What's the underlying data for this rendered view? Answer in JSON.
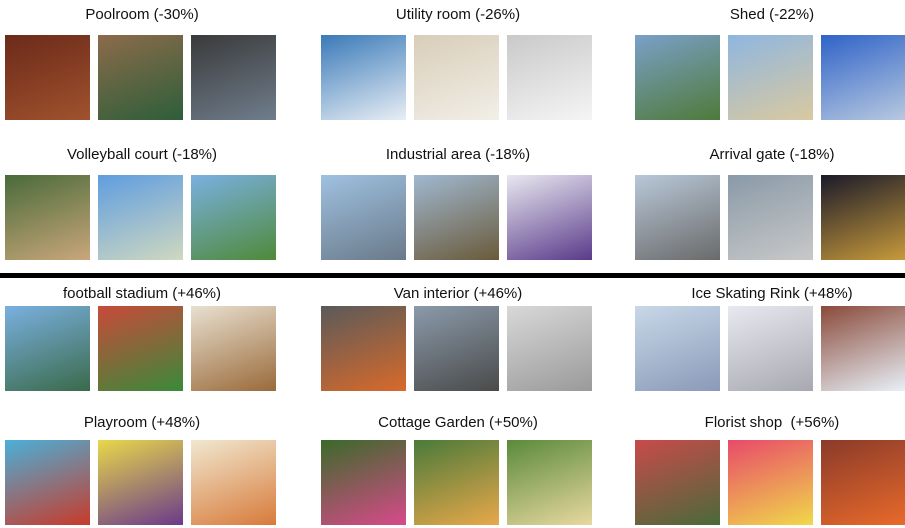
{
  "panels": [
    {
      "label": "Poolroom (-30%)"
    },
    {
      "label": "Utility room (-26%)"
    },
    {
      "label": "Shed (-22%)"
    },
    {
      "label": "Volleyball court (-18%)"
    },
    {
      "label": "Industrial area (-18%)"
    },
    {
      "label": "Arrival gate (-18%)"
    },
    {
      "label": "football stadium (+46%)"
    },
    {
      "label": "Van interior (+46%)"
    },
    {
      "label": "Ice Skating Rink (+48%)"
    },
    {
      "label": "Playroom (+48%)"
    },
    {
      "label": "Cottage Garden (+50%)"
    },
    {
      "label": "Florist shop  (+56%)"
    }
  ]
}
